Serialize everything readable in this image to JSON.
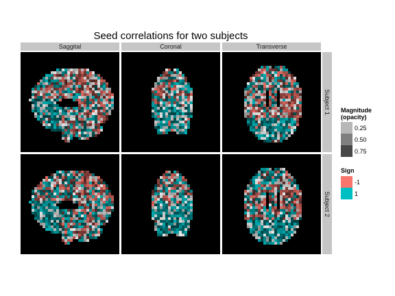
{
  "title": "Seed correlations for two subjects",
  "columns": [
    "Saggital",
    "Coronal",
    "Transverse"
  ],
  "rows": [
    "Subject 1",
    "Subject 2"
  ],
  "legend": {
    "magnitude": {
      "title_line1": "Magnitude",
      "title_line2": "(opacity)",
      "items": [
        {
          "label": "0.25",
          "color": "#b7b7b7"
        },
        {
          "label": "0.50",
          "color": "#7f7f7f"
        },
        {
          "label": "0.75",
          "color": "#474747"
        }
      ]
    },
    "sign": {
      "title": "Sign",
      "items": [
        {
          "label": "-1",
          "color": "#f8766d"
        },
        {
          "label": "1",
          "color": "#00bfc4"
        }
      ]
    }
  },
  "chart_data": {
    "type": "heatmap",
    "title": "Seed correlations for two subjects",
    "facet_columns": [
      "Saggital",
      "Coronal",
      "Transverse"
    ],
    "facet_rows": [
      "Subject 1",
      "Subject 2"
    ],
    "panel_background": "#000000",
    "strip_color": "#c6c6c6",
    "fill_variable": "Sign",
    "fill_levels": [
      {
        "value": -1,
        "color": "#f8766d"
      },
      {
        "value": 1,
        "color": "#00bfc4"
      }
    ],
    "alpha_variable": "Magnitude (opacity)",
    "alpha_breaks": [
      0.25,
      0.5,
      0.75
    ],
    "grid": false
  }
}
